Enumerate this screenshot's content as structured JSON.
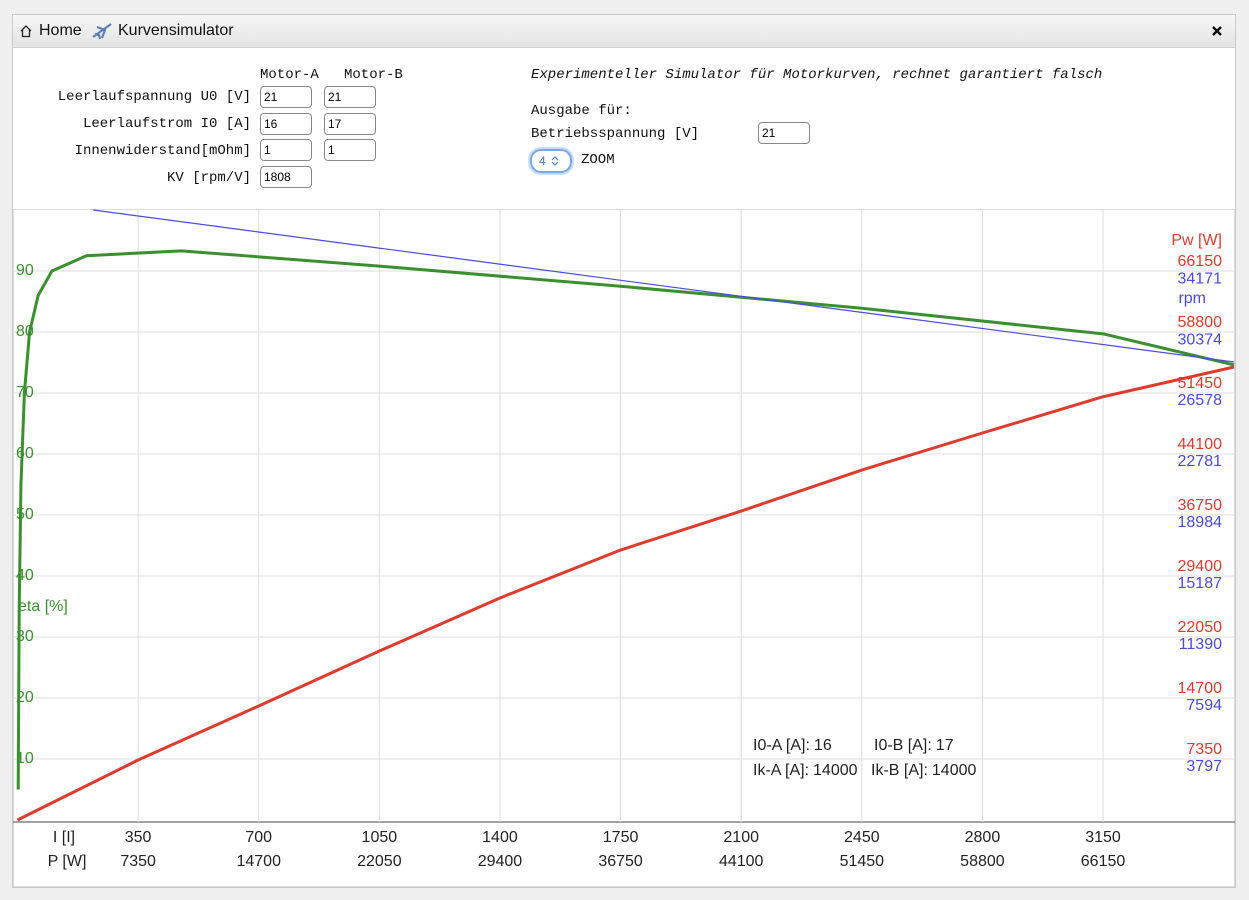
{
  "window": {
    "home": "Home",
    "title": "Kurvensimulator"
  },
  "form": {
    "columns": [
      "Motor-A",
      "Motor-B"
    ],
    "rows": [
      {
        "label": "Leerlaufspannung U0 [V]",
        "values": [
          21,
          21
        ]
      },
      {
        "label": "Leerlaufstrom I0 [A]",
        "values": [
          16,
          17
        ]
      },
      {
        "label": "Innenwiderstand[mOhm]",
        "values": [
          1,
          1
        ]
      },
      {
        "label": "KV [rpm/V]",
        "values": [
          1808
        ]
      }
    ],
    "description": "Experimenteller Simulator für Motorkurven, rechnet garantiert falsch",
    "output_label": "Ausgabe für:",
    "voltage_label": "Betriebsspannung [V]",
    "voltage": 21,
    "zoom": 4,
    "zoom_label": "ZOOM"
  },
  "chart_data": {
    "type": "line",
    "xlabel": "I [I]",
    "x2label": "P [W]",
    "xlim": [
      0,
      3530
    ],
    "xticks": [
      350,
      700,
      1050,
      1400,
      1750,
      2100,
      2450,
      2800,
      3150
    ],
    "x2lim": [
      0,
      74130
    ],
    "x2ticks": [
      7350,
      14700,
      22050,
      29400,
      36750,
      44100,
      51450,
      58800,
      66150
    ],
    "ylim": [
      0,
      100
    ],
    "yticks": [
      10,
      20,
      30,
      40,
      50,
      60,
      70,
      80,
      90
    ],
    "y2lim": [
      0,
      73500
    ],
    "y2ticks": [
      7350,
      14700,
      22050,
      29400,
      36750,
      44100,
      51450,
      58800,
      66150
    ],
    "y3lim": [
      0,
      37970
    ],
    "y3ticks": [
      3797,
      7594,
      11390,
      15187,
      18984,
      22781,
      26578,
      30374,
      34171
    ],
    "grid": true,
    "series": [
      {
        "name": "eta [%]",
        "color": "#3a8f2e",
        "axis": "y",
        "x": [
          2,
          5,
          10,
          20,
          35,
          60,
          100,
          200,
          475,
          1050,
          1750,
          2450,
          3150,
          3530
        ],
        "values": [
          5,
          35,
          55,
          70,
          80,
          86,
          90,
          92.5,
          93.3,
          90.8,
          87.5,
          83.9,
          79.7,
          74.6
        ]
      },
      {
        "name": "rpm",
        "color": "#4a4ae0",
        "axis": "y3",
        "x": [
          220,
          3530
        ],
        "values": [
          37970,
          28510
        ]
      },
      {
        "name": "Pw [W]",
        "color": "#dd3b2e",
        "axis": "y2",
        "x": [
          0,
          350,
          700,
          1050,
          1400,
          1750,
          2100,
          2450,
          2800,
          3150,
          3530
        ],
        "values": [
          0,
          7230,
          13740,
          20360,
          26750,
          32530,
          37230,
          42170,
          46630,
          51000,
          54580
        ]
      }
    ],
    "annotations": [
      {
        "label": "I0-A [A]:",
        "value": 16
      },
      {
        "label": "I0-B [A]:",
        "value": 17
      },
      {
        "label": "Ik-A [A]:",
        "value": 14000
      },
      {
        "label": "Ik-B [A]:",
        "value": 14000
      }
    ]
  }
}
